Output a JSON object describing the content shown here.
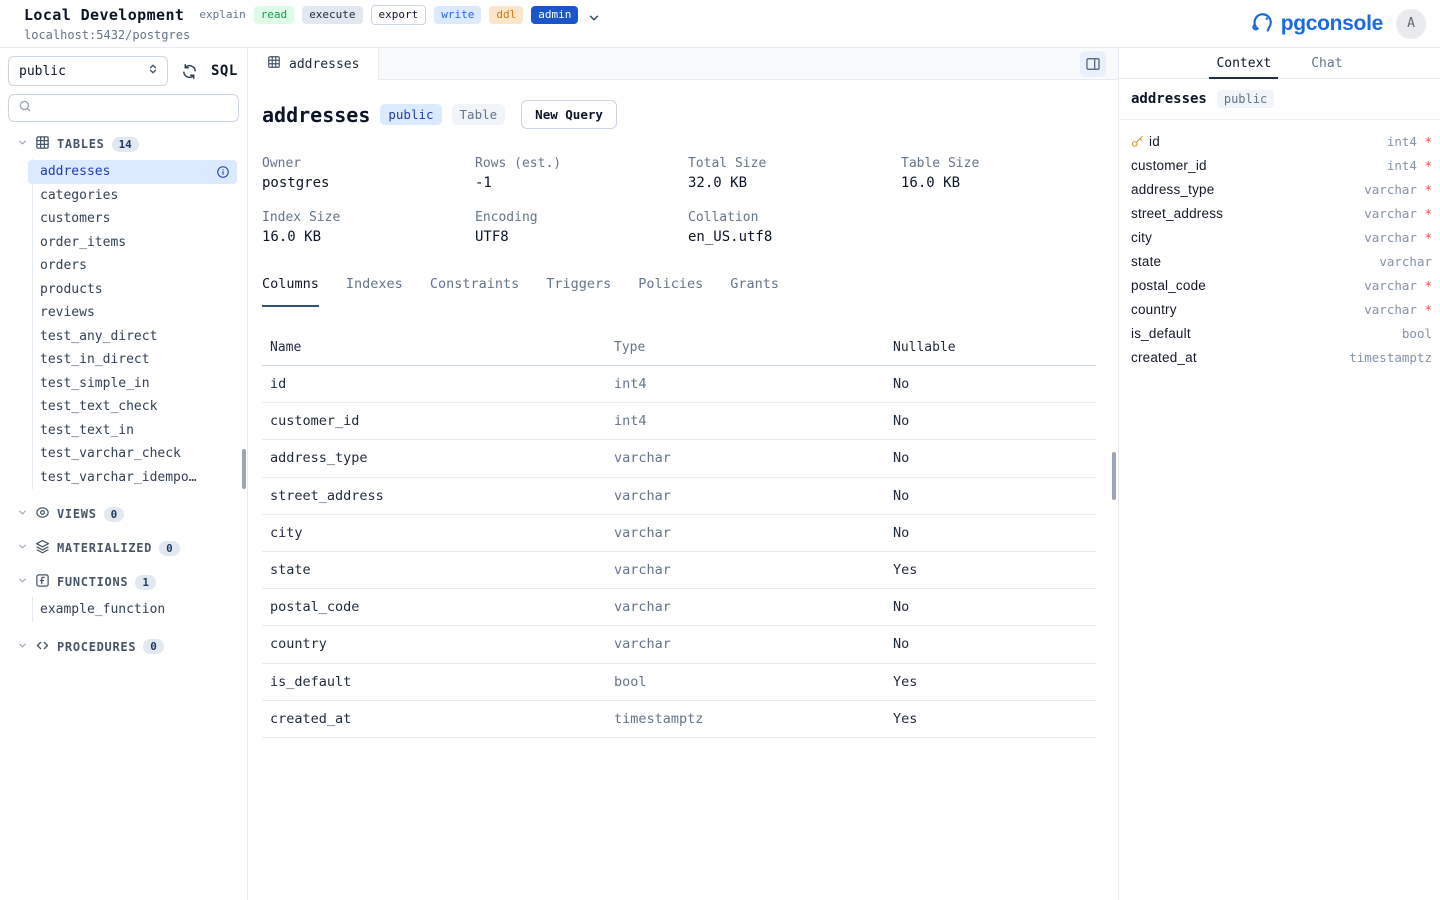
{
  "topbar": {
    "connection_name": "Local Development",
    "connection_url": "localhost:5432/postgres",
    "permissions": [
      {
        "label": "explain",
        "style": "plain"
      },
      {
        "label": "read",
        "style": "green"
      },
      {
        "label": "execute",
        "style": "slate"
      },
      {
        "label": "export",
        "style": "outline"
      },
      {
        "label": "write",
        "style": "blue"
      },
      {
        "label": "ddl",
        "style": "orange"
      },
      {
        "label": "admin",
        "style": "solid"
      }
    ],
    "brand": "pgconsole",
    "avatar_initial": "A"
  },
  "sidebar": {
    "schema_selected": "public",
    "sql_button": "SQL",
    "sections": {
      "tables": {
        "label": "TABLES",
        "count": "14"
      },
      "views": {
        "label": "VIEWS",
        "count": "0"
      },
      "materialized": {
        "label": "MATERIALIZED",
        "count": "0"
      },
      "functions": {
        "label": "FUNCTIONS",
        "count": "1"
      },
      "procedures": {
        "label": "PROCEDURES",
        "count": "0"
      }
    },
    "tables": [
      "addresses",
      "categories",
      "customers",
      "order_items",
      "orders",
      "products",
      "reviews",
      "test_any_direct",
      "test_in_direct",
      "test_simple_in",
      "test_text_check",
      "test_text_in",
      "test_varchar_check",
      "test_varchar_idempo…"
    ],
    "selected_table": "addresses",
    "functions": [
      "example_function"
    ]
  },
  "main": {
    "tab_label": "addresses",
    "title": "addresses",
    "schema_badge": "public",
    "type_badge": "Table",
    "new_query_label": "New Query",
    "stats": [
      {
        "label": "Owner",
        "value": "postgres"
      },
      {
        "label": "Rows (est.)",
        "value": "-1"
      },
      {
        "label": "Total Size",
        "value": "32.0 KB"
      },
      {
        "label": "Table Size",
        "value": "16.0 KB"
      },
      {
        "label": "Index Size",
        "value": "16.0 KB"
      },
      {
        "label": "Encoding",
        "value": "UTF8"
      },
      {
        "label": "Collation",
        "value": "en_US.utf8"
      }
    ],
    "tabs": [
      "Columns",
      "Indexes",
      "Constraints",
      "Triggers",
      "Policies",
      "Grants"
    ],
    "active_tab": "Columns",
    "columns_table": {
      "headers": [
        "Name",
        "Type",
        "Nullable"
      ],
      "rows": [
        {
          "name": "id",
          "type": "int4",
          "nullable": "No"
        },
        {
          "name": "customer_id",
          "type": "int4",
          "nullable": "No"
        },
        {
          "name": "address_type",
          "type": "varchar",
          "nullable": "No"
        },
        {
          "name": "street_address",
          "type": "varchar",
          "nullable": "No"
        },
        {
          "name": "city",
          "type": "varchar",
          "nullable": "No"
        },
        {
          "name": "state",
          "type": "varchar",
          "nullable": "Yes"
        },
        {
          "name": "postal_code",
          "type": "varchar",
          "nullable": "No"
        },
        {
          "name": "country",
          "type": "varchar",
          "nullable": "No"
        },
        {
          "name": "is_default",
          "type": "bool",
          "nullable": "Yes"
        },
        {
          "name": "created_at",
          "type": "timestamptz",
          "nullable": "Yes"
        }
      ]
    }
  },
  "context_panel": {
    "tabs": [
      "Context",
      "Chat"
    ],
    "active_tab": "Context",
    "table_name": "addresses",
    "schema_badge": "public",
    "columns": [
      {
        "name": "id",
        "type": "int4",
        "required": true,
        "pk": true
      },
      {
        "name": "customer_id",
        "type": "int4",
        "required": true
      },
      {
        "name": "address_type",
        "type": "varchar",
        "required": true
      },
      {
        "name": "street_address",
        "type": "varchar",
        "required": true
      },
      {
        "name": "city",
        "type": "varchar",
        "required": true
      },
      {
        "name": "state",
        "type": "varchar",
        "required": false
      },
      {
        "name": "postal_code",
        "type": "varchar",
        "required": true
      },
      {
        "name": "country",
        "type": "varchar",
        "required": true
      },
      {
        "name": "is_default",
        "type": "bool",
        "required": false
      },
      {
        "name": "created_at",
        "type": "timestamptz",
        "required": false
      }
    ]
  }
}
